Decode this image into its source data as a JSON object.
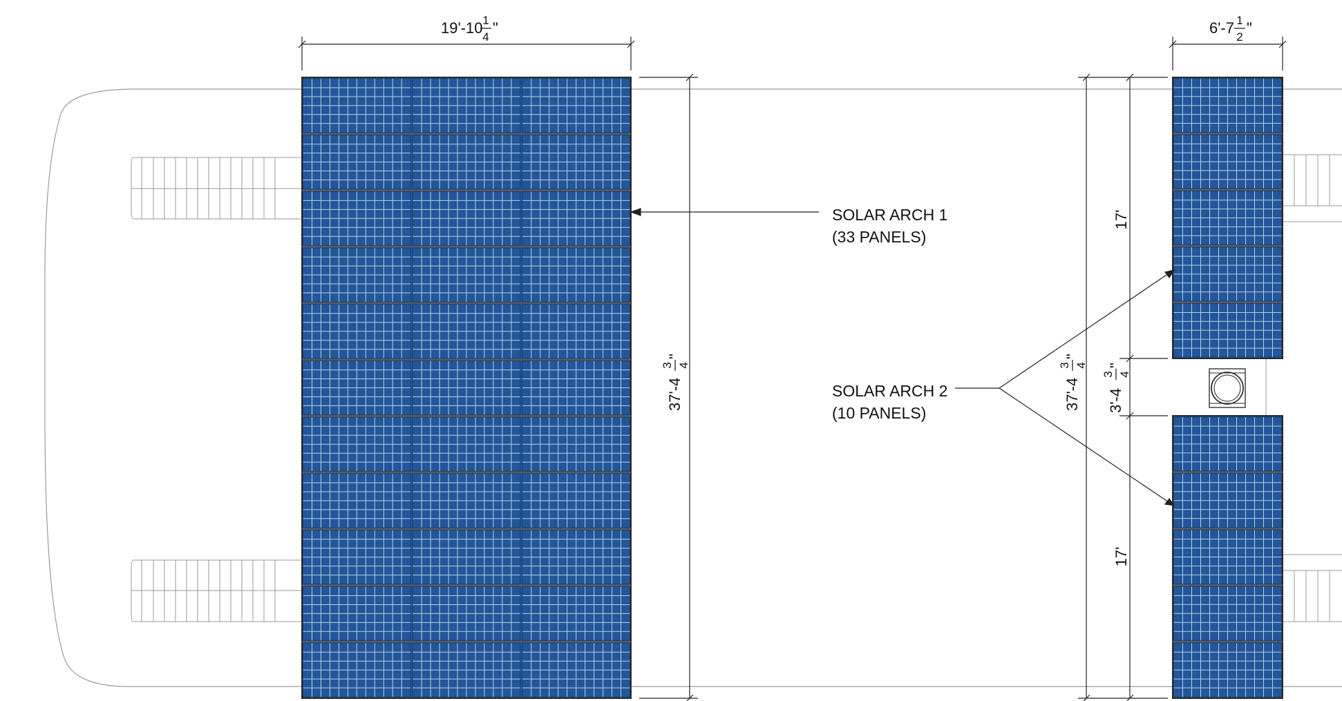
{
  "labels": {
    "arch1_name": "SOLAR ARCH 1",
    "arch1_panels": "(33 PANELS)",
    "arch2_name": "SOLAR ARCH 2",
    "arch2_panels": "(10 PANELS)"
  },
  "dimensions": {
    "arch1_width": {
      "whole": "19'-10",
      "num": "1",
      "den": "4",
      "unit": "\""
    },
    "arch1_height": {
      "whole": "37'-4",
      "num": "3",
      "den": "4",
      "unit": "\""
    },
    "arch2_width": {
      "whole": "6'-7",
      "num": "1",
      "den": "2",
      "unit": "\""
    },
    "arch2_total": {
      "whole": "37'-4",
      "num": "3",
      "den": "4",
      "unit": "\""
    },
    "arch2_gap": {
      "whole": "3'-4",
      "num": "3",
      "den": "4",
      "unit": "\""
    },
    "arch2_upper": "17'",
    "arch2_lower": "17'"
  },
  "arrays": {
    "arch1": {
      "columns": 3,
      "rows": 11
    },
    "arch2_upper": {
      "columns": 1,
      "rows": 5
    },
    "arch2_lower": {
      "columns": 1,
      "rows": 5
    }
  },
  "colors": {
    "panel_fill": "#23579a",
    "cell_line": "#d6e4f3",
    "frame": "#2b2b2b",
    "line": "#222222",
    "outline": "#9a9a9a"
  }
}
